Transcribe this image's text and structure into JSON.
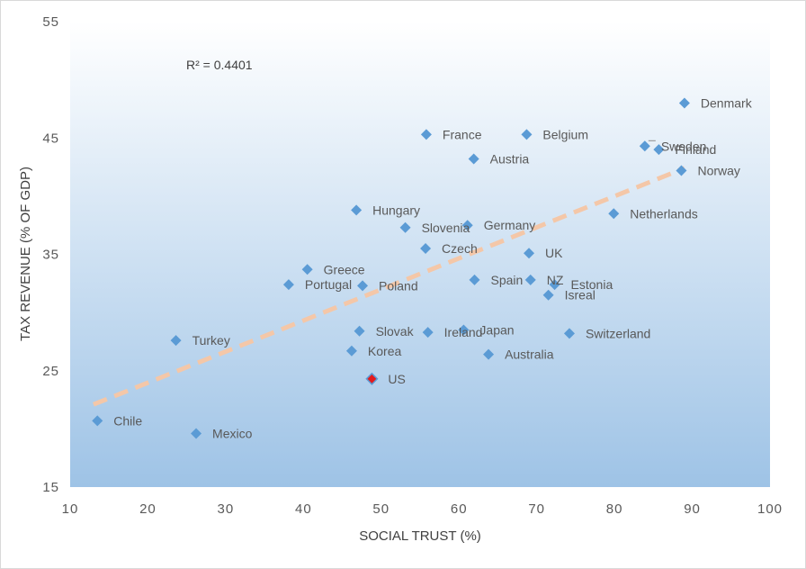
{
  "chart_data": {
    "type": "scatter",
    "xlabel": "SOCIAL TRUST (%)",
    "ylabel": "TAX REVENUE (% OF GDP)",
    "xlim": [
      10,
      100
    ],
    "ylim": [
      15,
      55
    ],
    "x_ticks": [
      "10",
      "20",
      "30",
      "40",
      "50",
      "60",
      "70",
      "80",
      "90",
      "100"
    ],
    "y_ticks": [
      "15",
      "25",
      "35",
      "45",
      "55"
    ],
    "grid": false,
    "annotation": "R² = 0.4401",
    "marker_color": "#5B9BD5",
    "highlight_color": "#E41A1C",
    "trendline_color": "#F4C7A8",
    "trendline": {
      "x": [
        13,
        89
      ],
      "y": [
        22.1,
        42.4
      ]
    },
    "points": [
      {
        "label": "Denmark",
        "x": 89.0,
        "y": 48.0
      },
      {
        "label": "France",
        "x": 55.8,
        "y": 45.3
      },
      {
        "label": "Belgium",
        "x": 68.7,
        "y": 45.3
      },
      {
        "label": "Sweden",
        "x": 83.9,
        "y": 44.3
      },
      {
        "label": "Finland",
        "x": 85.7,
        "y": 44.0
      },
      {
        "label": "Austria",
        "x": 61.9,
        "y": 43.2
      },
      {
        "label": "Norway",
        "x": 88.6,
        "y": 42.2
      },
      {
        "label": "Hungary",
        "x": 46.8,
        "y": 38.8
      },
      {
        "label": "Netherlands",
        "x": 79.9,
        "y": 38.5
      },
      {
        "label": "Germany",
        "x": 61.1,
        "y": 37.5
      },
      {
        "label": "Slovenia",
        "x": 53.1,
        "y": 37.3
      },
      {
        "label": "Czech",
        "x": 55.7,
        "y": 35.5
      },
      {
        "label": "UK",
        "x": 69.0,
        "y": 35.1
      },
      {
        "label": "Greece",
        "x": 40.5,
        "y": 33.7
      },
      {
        "label": "Spain",
        "x": 62.0,
        "y": 32.8
      },
      {
        "label": "NZ",
        "x": 69.2,
        "y": 32.8
      },
      {
        "label": "Estonia",
        "x": 72.3,
        "y": 32.4
      },
      {
        "label": "Portugal",
        "x": 38.1,
        "y": 32.4
      },
      {
        "label": "Poland",
        "x": 47.6,
        "y": 32.3
      },
      {
        "label": "Isreal",
        "x": 71.5,
        "y": 31.5
      },
      {
        "label": "Slovak",
        "x": 47.2,
        "y": 28.4
      },
      {
        "label": "Ireland",
        "x": 56.0,
        "y": 28.3
      },
      {
        "label": "Japan",
        "x": 60.6,
        "y": 28.5
      },
      {
        "label": "Switzerland",
        "x": 74.2,
        "y": 28.2
      },
      {
        "label": "Turkey",
        "x": 23.6,
        "y": 27.6
      },
      {
        "label": "Korea",
        "x": 46.2,
        "y": 26.7
      },
      {
        "label": "Australia",
        "x": 63.8,
        "y": 26.4
      },
      {
        "label": "US",
        "x": 48.8,
        "y": 24.3,
        "highlight": true
      },
      {
        "label": "Chile",
        "x": 13.5,
        "y": 20.7
      },
      {
        "label": "Mexico",
        "x": 26.2,
        "y": 19.6
      }
    ]
  }
}
